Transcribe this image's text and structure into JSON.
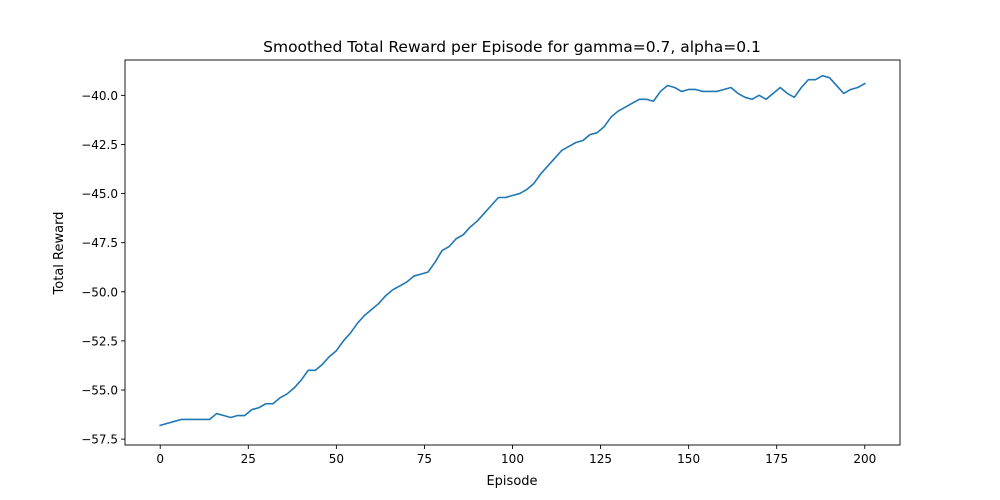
{
  "chart_data": {
    "type": "line",
    "title": "Smoothed Total Reward per Episode for gamma=0.7, alpha=0.1",
    "xlabel": "Episode",
    "ylabel": "Total Reward",
    "xlim": [
      -10,
      210
    ],
    "ylim": [
      -57.8,
      -38.2
    ],
    "xticks": [
      0,
      25,
      50,
      75,
      100,
      125,
      150,
      175,
      200
    ],
    "xtick_labels": [
      "0",
      "25",
      "50",
      "75",
      "100",
      "125",
      "150",
      "175",
      "200"
    ],
    "yticks": [
      -57.5,
      -55.0,
      -52.5,
      -50.0,
      -47.5,
      -45.0,
      -42.5,
      -40.0
    ],
    "ytick_labels": [
      "−57.5",
      "−55.0",
      "−52.5",
      "−50.0",
      "−47.5",
      "−45.0",
      "−42.5",
      "−40.0"
    ],
    "grid": false,
    "series": [
      {
        "color": "#1f77b4",
        "points": [
          [
            0,
            -56.8
          ],
          [
            2,
            -56.7
          ],
          [
            4,
            -56.6
          ],
          [
            6,
            -56.5
          ],
          [
            8,
            -56.5
          ],
          [
            10,
            -56.5
          ],
          [
            12,
            -56.5
          ],
          [
            14,
            -56.5
          ],
          [
            16,
            -56.2
          ],
          [
            18,
            -56.3
          ],
          [
            20,
            -56.4
          ],
          [
            22,
            -56.3
          ],
          [
            24,
            -56.3
          ],
          [
            26,
            -56.0
          ],
          [
            28,
            -55.9
          ],
          [
            30,
            -55.7
          ],
          [
            32,
            -55.7
          ],
          [
            34,
            -55.4
          ],
          [
            36,
            -55.2
          ],
          [
            38,
            -54.9
          ],
          [
            40,
            -54.5
          ],
          [
            42,
            -54.0
          ],
          [
            44,
            -54.0
          ],
          [
            46,
            -53.7
          ],
          [
            48,
            -53.3
          ],
          [
            50,
            -53.0
          ],
          [
            52,
            -52.5
          ],
          [
            54,
            -52.1
          ],
          [
            56,
            -51.6
          ],
          [
            58,
            -51.2
          ],
          [
            60,
            -50.9
          ],
          [
            62,
            -50.6
          ],
          [
            64,
            -50.2
          ],
          [
            66,
            -49.9
          ],
          [
            68,
            -49.7
          ],
          [
            70,
            -49.5
          ],
          [
            72,
            -49.2
          ],
          [
            74,
            -49.1
          ],
          [
            76,
            -49.0
          ],
          [
            78,
            -48.5
          ],
          [
            80,
            -47.9
          ],
          [
            82,
            -47.7
          ],
          [
            84,
            -47.3
          ],
          [
            86,
            -47.1
          ],
          [
            88,
            -46.7
          ],
          [
            90,
            -46.4
          ],
          [
            92,
            -46.0
          ],
          [
            94,
            -45.6
          ],
          [
            96,
            -45.2
          ],
          [
            98,
            -45.2
          ],
          [
            100,
            -45.1
          ],
          [
            102,
            -45.0
          ],
          [
            104,
            -44.8
          ],
          [
            106,
            -44.5
          ],
          [
            108,
            -44.0
          ],
          [
            110,
            -43.6
          ],
          [
            112,
            -43.2
          ],
          [
            114,
            -42.8
          ],
          [
            116,
            -42.6
          ],
          [
            118,
            -42.4
          ],
          [
            120,
            -42.3
          ],
          [
            122,
            -42.0
          ],
          [
            124,
            -41.9
          ],
          [
            126,
            -41.6
          ],
          [
            128,
            -41.1
          ],
          [
            130,
            -40.8
          ],
          [
            132,
            -40.6
          ],
          [
            134,
            -40.4
          ],
          [
            136,
            -40.2
          ],
          [
            138,
            -40.2
          ],
          [
            140,
            -40.3
          ],
          [
            142,
            -39.8
          ],
          [
            144,
            -39.5
          ],
          [
            146,
            -39.6
          ],
          [
            148,
            -39.8
          ],
          [
            150,
            -39.7
          ],
          [
            152,
            -39.7
          ],
          [
            154,
            -39.8
          ],
          [
            156,
            -39.8
          ],
          [
            158,
            -39.8
          ],
          [
            160,
            -39.7
          ],
          [
            162,
            -39.6
          ],
          [
            164,
            -39.9
          ],
          [
            166,
            -40.1
          ],
          [
            168,
            -40.2
          ],
          [
            170,
            -40.0
          ],
          [
            172,
            -40.2
          ],
          [
            174,
            -39.9
          ],
          [
            176,
            -39.6
          ],
          [
            178,
            -39.9
          ],
          [
            180,
            -40.1
          ],
          [
            182,
            -39.6
          ],
          [
            184,
            -39.2
          ],
          [
            186,
            -39.2
          ],
          [
            188,
            -39.0
          ],
          [
            190,
            -39.1
          ],
          [
            192,
            -39.5
          ],
          [
            194,
            -39.9
          ],
          [
            196,
            -39.7
          ],
          [
            198,
            -39.6
          ],
          [
            200,
            -39.4
          ]
        ]
      }
    ]
  }
}
